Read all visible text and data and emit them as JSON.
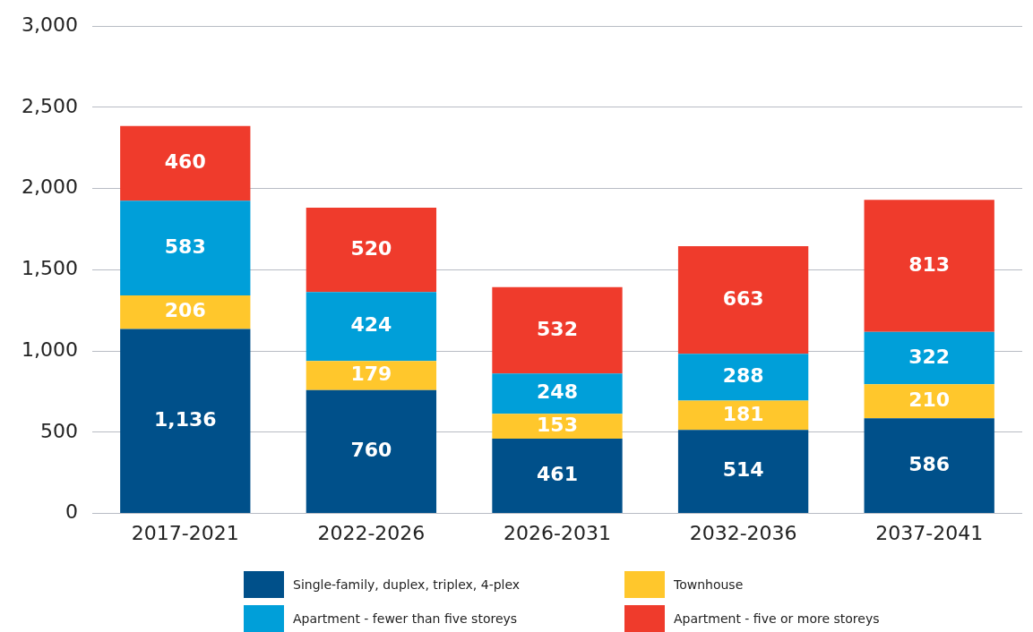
{
  "chart_data": {
    "type": "bar",
    "stacked": true,
    "categories": [
      "2017-2021",
      "2022-2026",
      "2026-2031",
      "2032-2036",
      "2037-2041"
    ],
    "series": [
      {
        "name": "Single-family, duplex, triplex, 4-plex",
        "color": "#00508a",
        "values": [
          1136,
          760,
          461,
          514,
          586
        ],
        "value_labels": [
          "1,136",
          "760",
          "461",
          "514",
          "586"
        ]
      },
      {
        "name": "Townhouse",
        "color": "#ffc72c",
        "values": [
          206,
          179,
          153,
          181,
          210
        ],
        "value_labels": [
          "206",
          "179",
          "153",
          "181",
          "210"
        ]
      },
      {
        "name": "Apartment - fewer than five storeys",
        "color": "#009fd9",
        "values": [
          583,
          424,
          248,
          288,
          322
        ],
        "value_labels": [
          "583",
          "424",
          "248",
          "288",
          "322"
        ]
      },
      {
        "name": "Apartment - five or more storeys",
        "color": "#ef3b2c",
        "values": [
          460,
          520,
          532,
          663,
          813
        ],
        "value_labels": [
          "460",
          "520",
          "532",
          "663",
          "813"
        ]
      }
    ],
    "ylim": [
      0,
      3000
    ],
    "yticks": [
      0,
      {
        "value": 500,
        "label": "500"
      },
      {
        "value": 1000,
        "label": "1,000"
      },
      {
        "value": 1500,
        "label": "1,500"
      },
      {
        "value": 2000,
        "label": "2,000"
      },
      {
        "value": 2500,
        "label": "2,500"
      },
      {
        "value": 3000,
        "label": "3,000"
      }
    ],
    "grid": "y",
    "legend": "bottom"
  }
}
